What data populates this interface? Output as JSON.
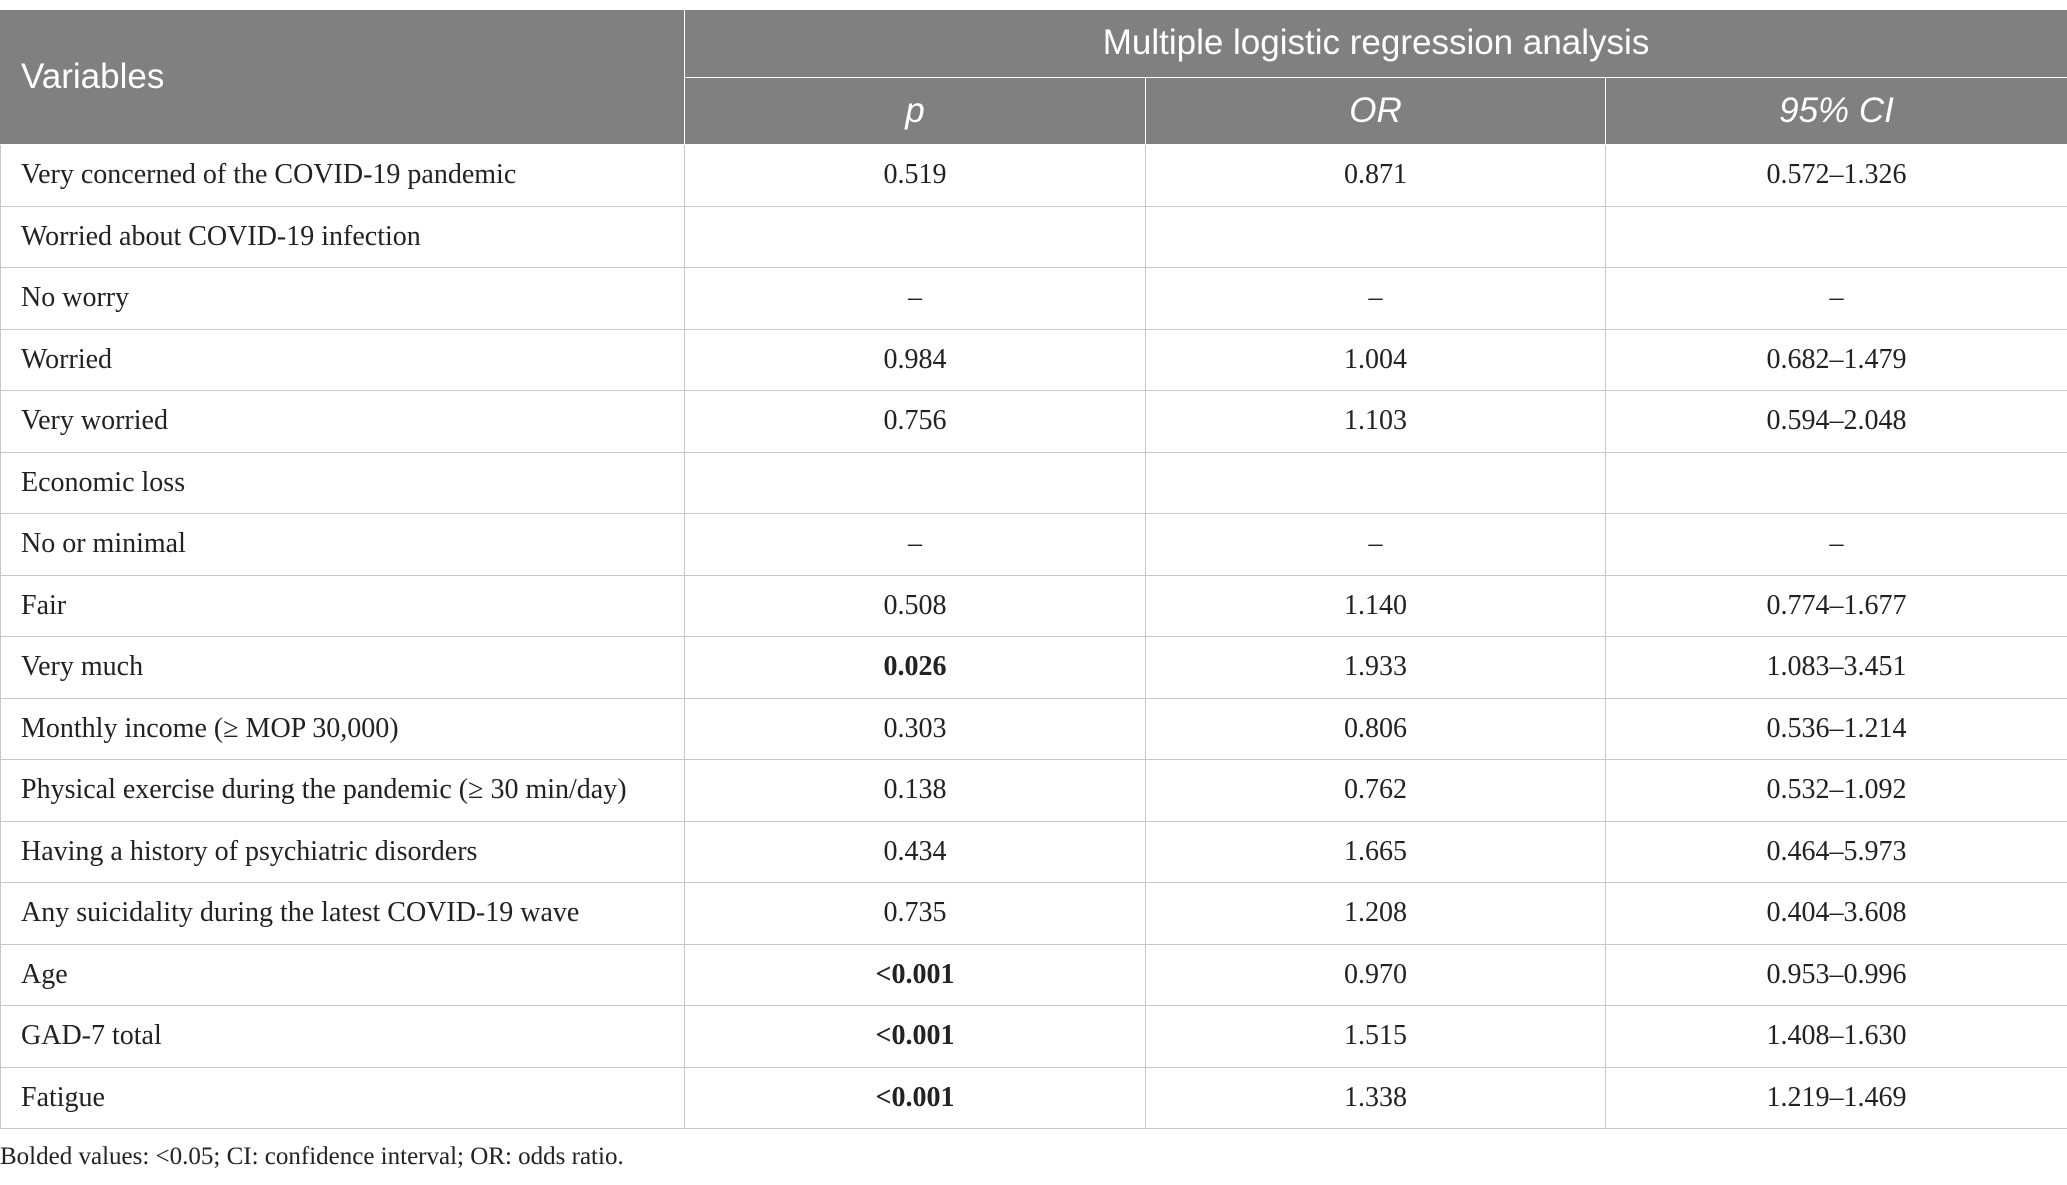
{
  "header": {
    "variables_label": "Variables",
    "group_label": "Multiple logistic regression analysis",
    "columns": [
      "p",
      "OR",
      "95% CI"
    ]
  },
  "rows": [
    {
      "variable": "Very concerned of the COVID-19 pandemic",
      "p": "0.519",
      "or": "0.871",
      "ci": "0.572–1.326",
      "p_bold": false
    },
    {
      "variable": "Worried about COVID-19 infection",
      "p": "",
      "or": "",
      "ci": "",
      "p_bold": false
    },
    {
      "variable": "No worry",
      "p": "–",
      "or": "–",
      "ci": "–",
      "p_bold": false
    },
    {
      "variable": "Worried",
      "p": "0.984",
      "or": "1.004",
      "ci": "0.682–1.479",
      "p_bold": false
    },
    {
      "variable": "Very worried",
      "p": "0.756",
      "or": "1.103",
      "ci": "0.594–2.048",
      "p_bold": false
    },
    {
      "variable": "Economic loss",
      "p": "",
      "or": "",
      "ci": "",
      "p_bold": false
    },
    {
      "variable": "No or minimal",
      "p": "–",
      "or": "–",
      "ci": "–",
      "p_bold": false
    },
    {
      "variable": "Fair",
      "p": "0.508",
      "or": "1.140",
      "ci": "0.774–1.677",
      "p_bold": false
    },
    {
      "variable": "Very much",
      "p": "0.026",
      "or": "1.933",
      "ci": "1.083–3.451",
      "p_bold": true
    },
    {
      "variable": "Monthly income (≥ MOP 30,000)",
      "p": "0.303",
      "or": "0.806",
      "ci": "0.536–1.214",
      "p_bold": false
    },
    {
      "variable": "Physical exercise during the pandemic (≥ 30 min/day)",
      "p": "0.138",
      "or": "0.762",
      "ci": "0.532–1.092",
      "p_bold": false
    },
    {
      "variable": "Having a history of psychiatric disorders",
      "p": "0.434",
      "or": "1.665",
      "ci": "0.464–5.973",
      "p_bold": false
    },
    {
      "variable": "Any suicidality during the latest COVID-19 wave",
      "p": "0.735",
      "or": "1.208",
      "ci": "0.404–3.608",
      "p_bold": false
    },
    {
      "variable": "Age",
      "p": "<0.001",
      "or": "0.970",
      "ci": "0.953–0.996",
      "p_bold": true
    },
    {
      "variable": "GAD-7 total",
      "p": "<0.001",
      "or": "1.515",
      "ci": "1.408–1.630",
      "p_bold": true
    },
    {
      "variable": "Fatigue",
      "p": "<0.001",
      "or": "1.338",
      "ci": "1.219–1.469",
      "p_bold": true
    }
  ],
  "footnote": "Bolded values: <0.05; CI: confidence interval; OR: odds ratio.",
  "colors": {
    "header_bg": "#808080",
    "header_text": "#ffffff",
    "grid": "#c8c8c8",
    "body_text": "#222222"
  }
}
